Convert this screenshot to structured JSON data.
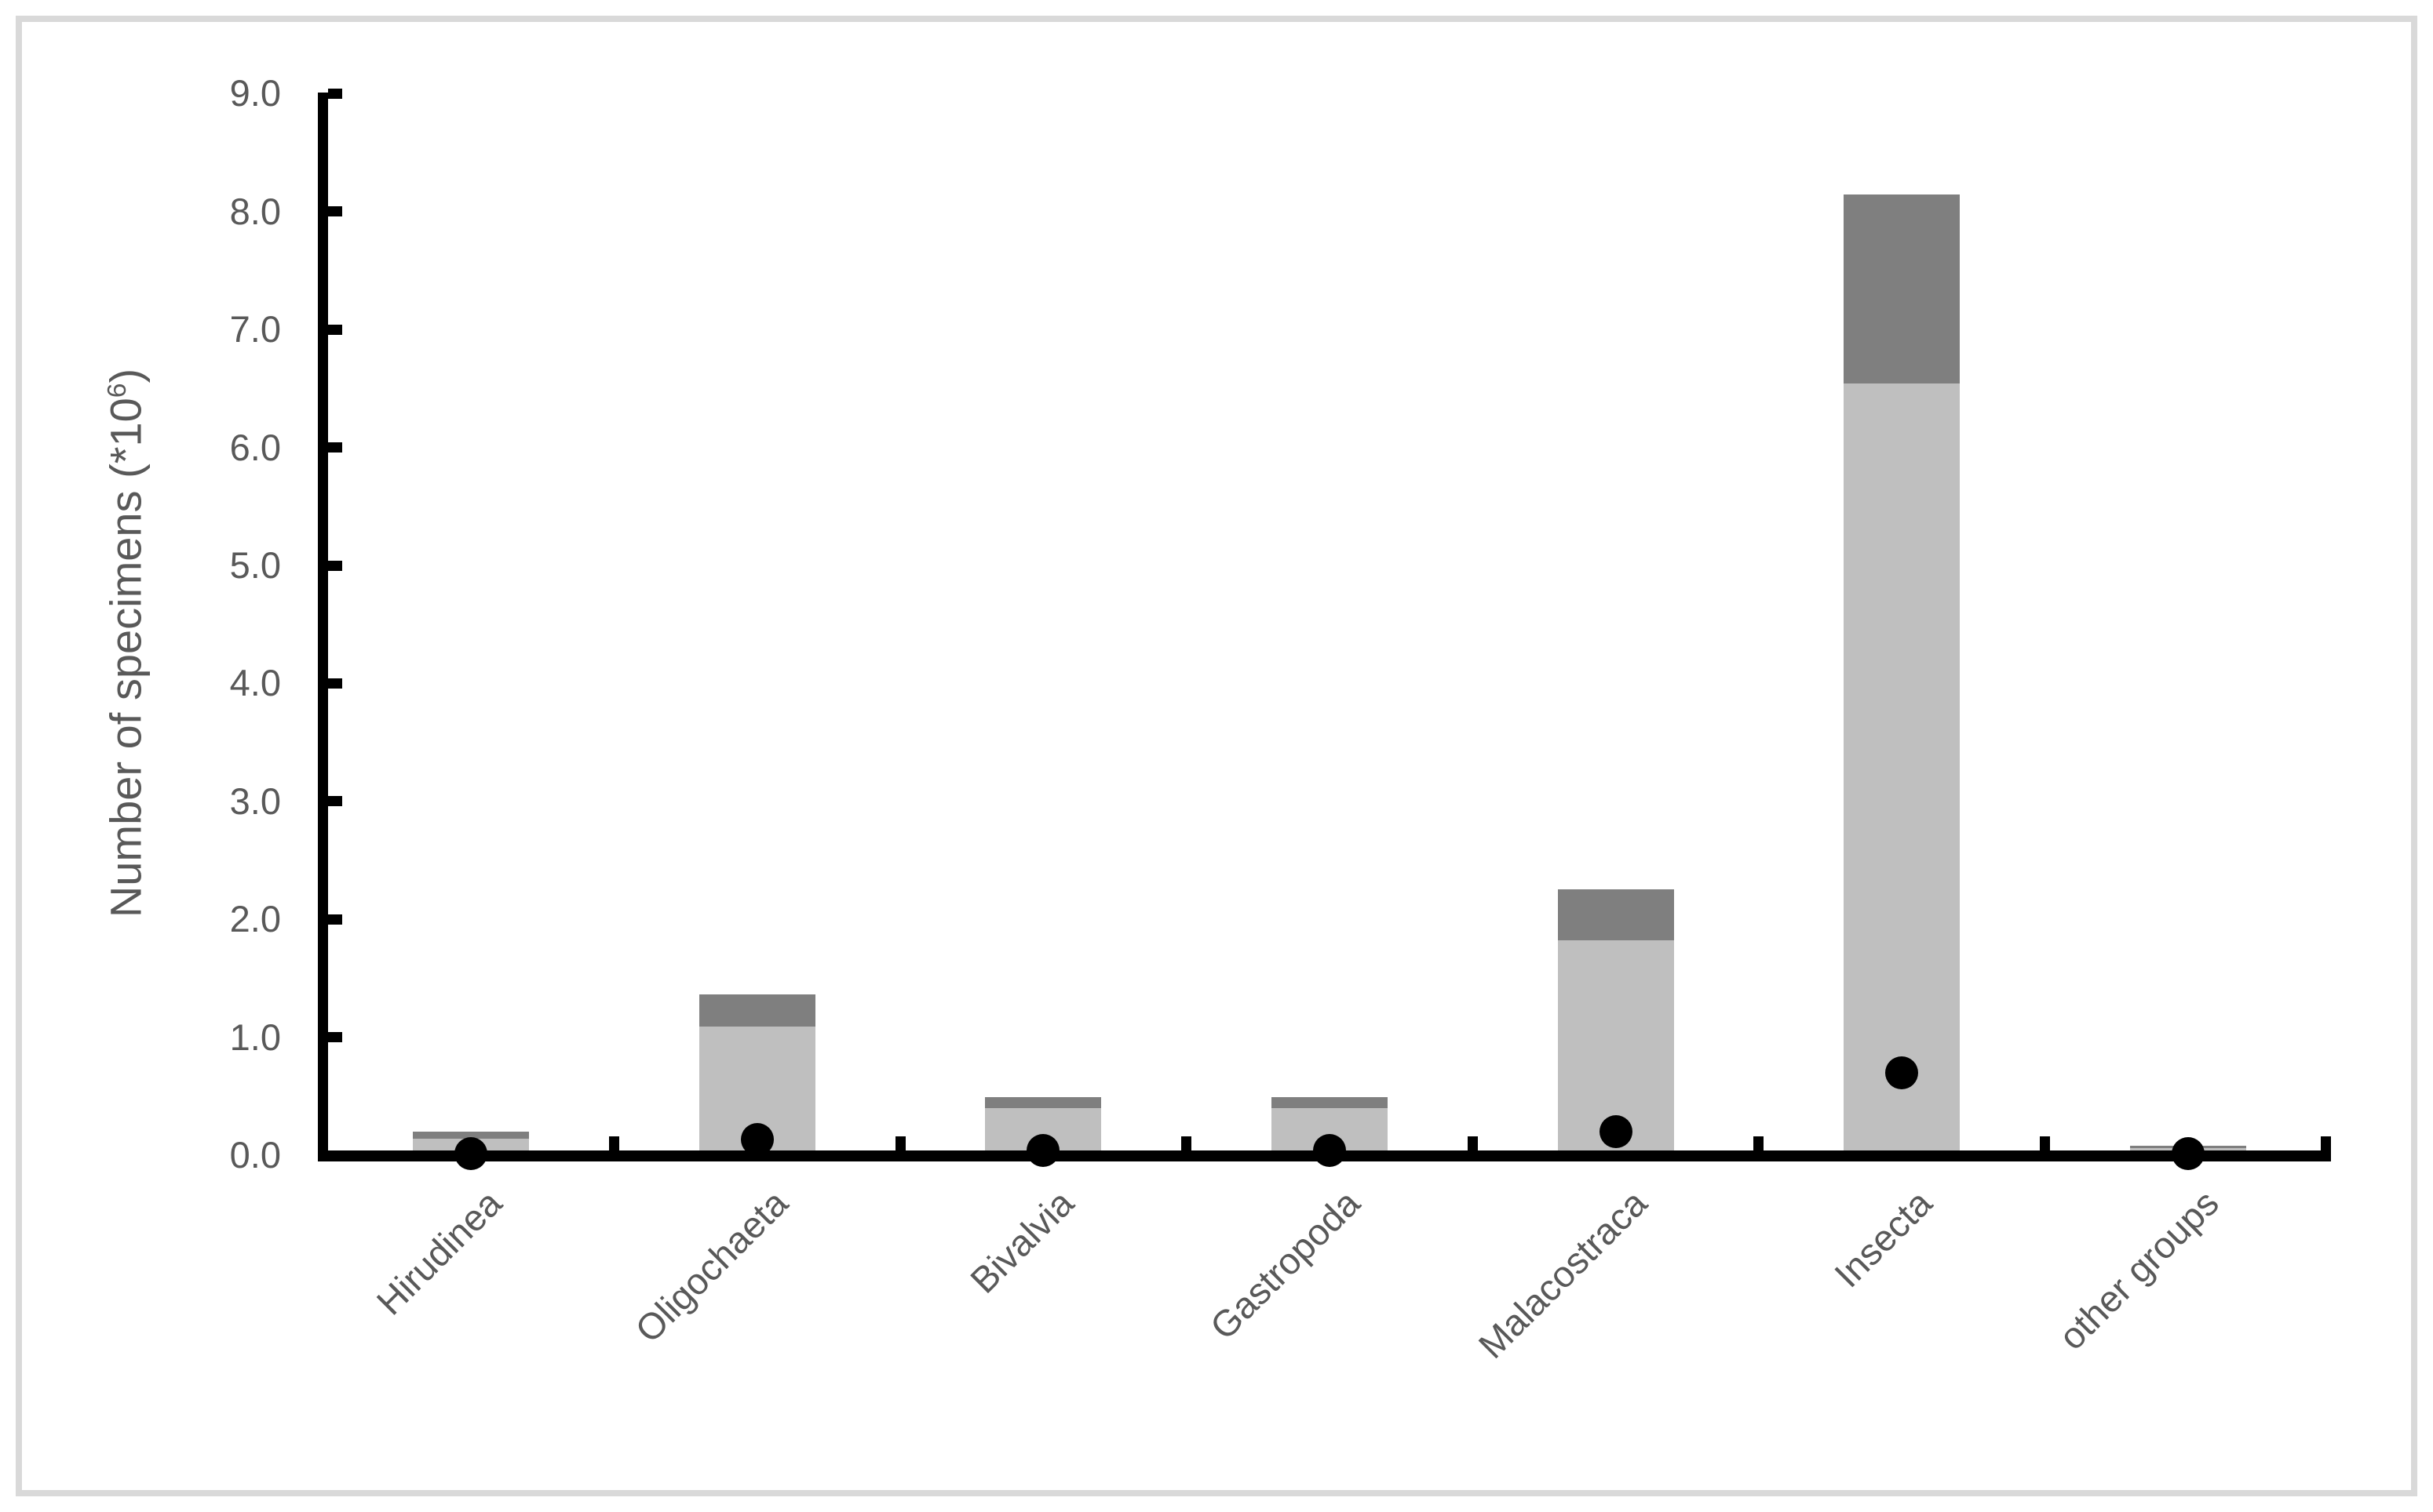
{
  "figure": {
    "y_axis_title": {
      "prefix": "Number of specimens (*10",
      "superscript": "6",
      "suffix": ")"
    }
  },
  "chart_data": {
    "type": "bar",
    "subtype": "stacked-column-with-point-markers",
    "title": "",
    "xlabel": "",
    "ylabel": "Number of specimens (*10^6)",
    "categories": [
      "Hirudinea",
      "Oligochaeta",
      "Bivalvia",
      "Gastropoda",
      "Malacostraca",
      "Insecta",
      "other groups"
    ],
    "series": [
      {
        "name": "bottom-segment-light-gray",
        "color": "#bfbfbf",
        "values": [
          0.1,
          1.05,
          0.36,
          0.36,
          1.78,
          6.5,
          0.02
        ]
      },
      {
        "name": "top-segment-dark-gray",
        "color": "#7f7f7f",
        "values": [
          0.06,
          0.27,
          0.09,
          0.09,
          0.43,
          1.6,
          0.02
        ]
      }
    ],
    "stack_totals": [
      0.16,
      1.32,
      0.45,
      0.45,
      2.21,
      8.1,
      0.04
    ],
    "point_series": {
      "name": "black-dot-markers",
      "color": "#000000",
      "values": [
        0.01,
        0.13,
        0.04,
        0.04,
        0.2,
        0.7,
        0.01
      ]
    },
    "ylim": [
      0,
      9
    ],
    "ytick_step": 1.0,
    "ytick_labels": [
      "0.0",
      "1.0",
      "2.0",
      "3.0",
      "4.0",
      "5.0",
      "6.0",
      "7.0",
      "8.0",
      "9.0"
    ],
    "grid": false,
    "legend": false,
    "tick_direction": "inside",
    "x_label_rotation_deg": 45
  },
  "colors": {
    "axis": "#000000",
    "text": "#595959",
    "bar_light": "#bfbfbf",
    "bar_dark": "#7f7f7f",
    "figure_border": "#d9d9d9",
    "background": "#ffffff"
  }
}
